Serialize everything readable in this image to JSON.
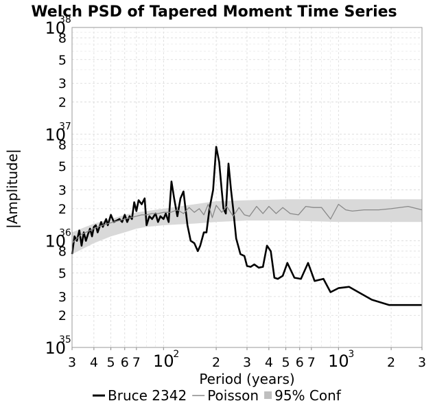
{
  "chart_data": {
    "type": "line",
    "title": "Welch PSD of Tapered Moment Time Series",
    "xlabel": "Period (years)",
    "ylabel": "|Amplitude|",
    "xscale": "log",
    "yscale": "log",
    "xlim": [
      30,
      3000
    ],
    "ylim": [
      1e+35,
      1e+38
    ],
    "grid": true,
    "legend_position": "bottom",
    "x_ticks": [
      {
        "value": 30,
        "base": "3",
        "exp": ""
      },
      {
        "value": 40,
        "base": "4",
        "exp": ""
      },
      {
        "value": 50,
        "base": "5",
        "exp": ""
      },
      {
        "value": 60,
        "base": "6",
        "exp": ""
      },
      {
        "value": 70,
        "base": "7",
        "exp": ""
      },
      {
        "value": 100,
        "base": "10",
        "exp": "2"
      },
      {
        "value": 200,
        "base": "2",
        "exp": ""
      },
      {
        "value": 300,
        "base": "3",
        "exp": ""
      },
      {
        "value": 400,
        "base": "4",
        "exp": ""
      },
      {
        "value": 500,
        "base": "5",
        "exp": ""
      },
      {
        "value": 600,
        "base": "6",
        "exp": ""
      },
      {
        "value": 700,
        "base": "7",
        "exp": ""
      },
      {
        "value": 1000,
        "base": "10",
        "exp": "3"
      },
      {
        "value": 2000,
        "base": "2",
        "exp": ""
      },
      {
        "value": 3000,
        "base": "3",
        "exp": ""
      }
    ],
    "y_ticks": [
      {
        "value": 1e+35,
        "base": "10",
        "exp": "35"
      },
      {
        "value": 2e+35,
        "base": "2",
        "exp": ""
      },
      {
        "value": 3e+35,
        "base": "3",
        "exp": ""
      },
      {
        "value": 5e+35,
        "base": "5",
        "exp": ""
      },
      {
        "value": 8e+35,
        "base": "8",
        "exp": ""
      },
      {
        "value": 1e+36,
        "base": "10",
        "exp": "36"
      },
      {
        "value": 2e+36,
        "base": "2",
        "exp": ""
      },
      {
        "value": 3e+36,
        "base": "3",
        "exp": ""
      },
      {
        "value": 5e+36,
        "base": "5",
        "exp": ""
      },
      {
        "value": 8e+36,
        "base": "8",
        "exp": ""
      },
      {
        "value": 1e+37,
        "base": "10",
        "exp": "37"
      },
      {
        "value": 2e+37,
        "base": "2",
        "exp": ""
      },
      {
        "value": 3e+37,
        "base": "3",
        "exp": ""
      },
      {
        "value": 5e+37,
        "base": "5",
        "exp": ""
      },
      {
        "value": 8e+37,
        "base": "8",
        "exp": ""
      },
      {
        "value": 1e+38,
        "base": "10",
        "exp": "38"
      }
    ],
    "series": [
      {
        "name": "Bruce 2342",
        "color": "#000000",
        "style": "thick-line",
        "x": [
          30,
          31,
          32,
          33,
          34,
          35,
          36,
          37,
          38,
          39,
          40,
          41,
          42,
          44,
          45,
          47,
          48,
          50,
          52,
          54,
          56,
          58,
          60,
          62,
          64,
          66,
          68,
          70,
          72,
          75,
          78,
          80,
          83,
          86,
          90,
          93,
          96,
          100,
          103,
          107,
          111,
          115,
          120,
          125,
          130,
          137,
          143,
          150,
          157,
          162,
          170,
          176,
          183,
          192,
          200,
          208,
          215,
          220,
          227,
          235,
          243,
          250,
          260,
          267,
          275,
          290,
          300,
          315,
          330,
          350,
          370,
          390,
          410,
          430,
          450,
          480,
          510,
          560,
          610,
          670,
          730,
          820,
          900,
          1000,
          1150,
          1300,
          1550,
          1950,
          2550,
          3000
        ],
        "values": [
          7.5e+35,
          1.1e+36,
          1e+36,
          1.25e+36,
          9e+35,
          1.2e+36,
          1e+36,
          1.15e+36,
          1.3e+36,
          1.1e+36,
          1.35e+36,
          1.4e+36,
          1.2e+36,
          1.5e+36,
          1.35e+36,
          1.6e+36,
          1.4e+36,
          1.75e+36,
          1.5e+36,
          1.55e+36,
          1.6e+36,
          1.5e+36,
          1.75e+36,
          1.5e+36,
          1.7e+36,
          1.6e+36,
          2.3e+36,
          1.9e+36,
          2.4e+36,
          2.2e+36,
          2.5e+36,
          1.4e+36,
          1.7e+36,
          1.6e+36,
          1.8e+36,
          1.5e+36,
          1.7e+36,
          1.6e+36,
          1.8e+36,
          1.5e+36,
          3.6e+36,
          2.5e+36,
          1.7e+36,
          2.5e+36,
          2.9e+36,
          1.4e+36,
          1e+36,
          9.5e+35,
          8e+35,
          9e+35,
          1.2e+36,
          1.2e+36,
          2e+36,
          3e+36,
          7.6e+36,
          5.5e+36,
          3e+36,
          2e+36,
          1.8e+36,
          5.3e+36,
          3e+36,
          2e+36,
          1.05e+36,
          9e+35,
          7.5e+35,
          7.2e+35,
          5.8e+35,
          5.7e+35,
          6e+35,
          5.6e+35,
          5.7e+35,
          9e+35,
          8e+35,
          4.5e+35,
          4.4e+35,
          4.7e+35,
          6.2e+35,
          4.5e+35,
          4.4e+35,
          6.2e+35,
          4.2e+35,
          4.4e+35,
          3.3e+35,
          3.6e+35,
          3.7e+35,
          3.3e+35,
          2.8e+35,
          2.5e+35,
          2.5e+35,
          2.5e+35
        ],
        "smooth": false
      },
      {
        "name": "Poisson",
        "color": "#888888",
        "style": "thin-line",
        "x": [
          30,
          32,
          34,
          36,
          38,
          40,
          42,
          45,
          48,
          52,
          56,
          60,
          65,
          70,
          75,
          80,
          86,
          93,
          100,
          110,
          120,
          130,
          140,
          150,
          160,
          170,
          180,
          190,
          200,
          215,
          230,
          250,
          270,
          290,
          310,
          340,
          370,
          400,
          440,
          480,
          530,
          590,
          650,
          720,
          800,
          900,
          1000,
          1100,
          1200,
          1400,
          1700,
          2000,
          2500,
          3000
        ],
        "values": [
          9.5e+35,
          1.05e+36,
          1.15e+36,
          1.2e+36,
          1.25e+36,
          1.3e+36,
          1.35e+36,
          1.4e+36,
          1.45e+36,
          1.5e+36,
          1.55e+36,
          1.6e+36,
          1.65e+36,
          1.7e+36,
          1.75e+36,
          1.75e+36,
          1.8e+36,
          1.8e+36,
          1.85e+36,
          1.85e+36,
          1.95e+36,
          1.8e+36,
          2.05e+36,
          1.85e+36,
          2e+36,
          1.75e+36,
          2.2e+36,
          1.65e+36,
          2.15e+36,
          1.85e+36,
          2.1e+36,
          1.7e+36,
          2.05e+36,
          1.75e+36,
          1.7e+36,
          2.1e+36,
          1.8e+36,
          2.1e+36,
          1.8e+36,
          2.05e+36,
          1.8e+36,
          1.75e+36,
          2.1e+36,
          2.05e+36,
          2.05e+36,
          1.6e+36,
          2.2e+36,
          1.95e+36,
          1.9e+36,
          1.95e+36,
          1.95e+36,
          2e+36,
          2.1e+36,
          1.95e+36
        ]
      }
    ],
    "confidence_band": {
      "name": "95% Conf",
      "color": "#d9d9d9",
      "x": [
        30,
        40,
        50,
        60,
        70,
        80,
        100,
        150,
        200,
        300,
        500,
        1000,
        2000,
        3000
      ],
      "lower": [
        7.5e+35,
        9.5e+35,
        1.1e+36,
        1.2e+36,
        1.3e+36,
        1.35e+36,
        1.4e+36,
        1.45e+36,
        1.5e+36,
        1.55e+36,
        1.55e+36,
        1.5e+36,
        1.5e+36,
        1.5e+36
      ],
      "upper": [
        1.2e+36,
        1.45e+36,
        1.6e+36,
        1.75e+36,
        1.85e+36,
        1.9e+36,
        2e+36,
        2.2e+36,
        2.35e+36,
        2.4e+36,
        2.45e+36,
        2.45e+36,
        2.45e+36,
        2.45e+36
      ]
    },
    "legend": [
      {
        "label": "Bruce 2342",
        "kind": "thick-line",
        "color": "#000000"
      },
      {
        "label": "Poisson",
        "kind": "thin-line",
        "color": "#888888"
      },
      {
        "label": "95% Conf",
        "kind": "square",
        "color": "#bfbfbf"
      }
    ]
  }
}
